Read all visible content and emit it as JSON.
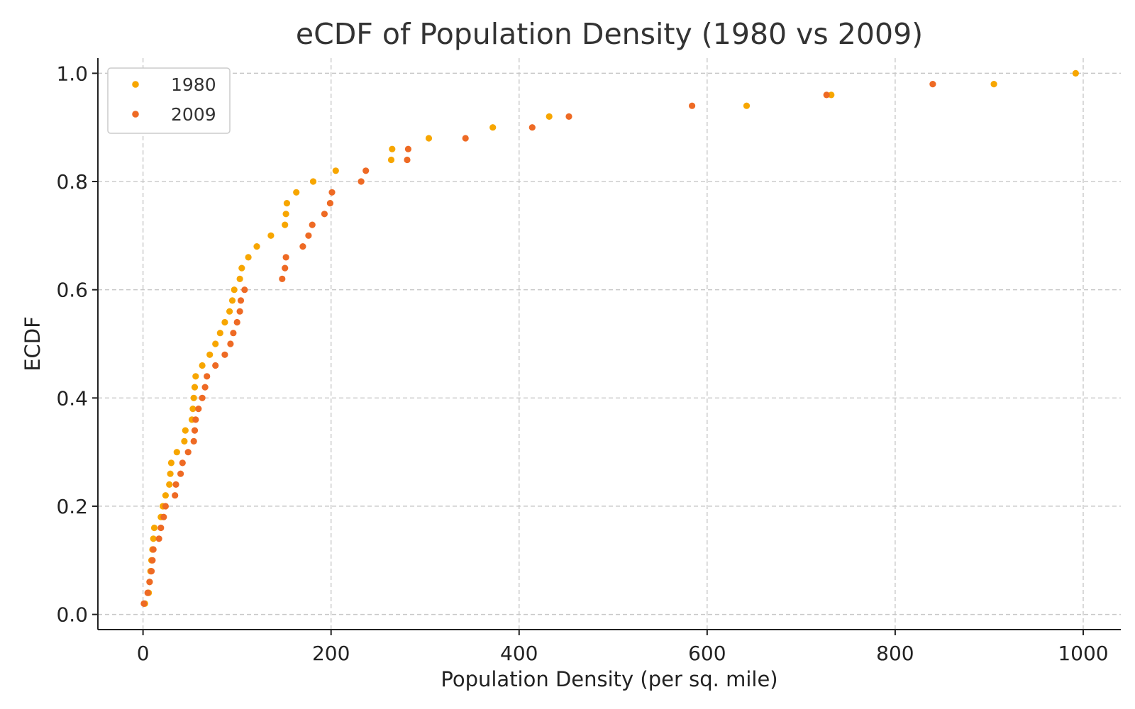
{
  "chart_data": {
    "type": "scatter",
    "title": "eCDF of Population Density (1980 vs 2009)",
    "xlabel": "Population Density (per sq. mile)",
    "ylabel": "ECDF",
    "xlim": [
      -48,
      1040
    ],
    "ylim": [
      -0.028,
      1.028
    ],
    "x_ticks": [
      0,
      200,
      400,
      600,
      800,
      1000
    ],
    "x_tick_labels": [
      "0",
      "200",
      "400",
      "600",
      "800",
      "1000"
    ],
    "y_ticks": [
      0.0,
      0.2,
      0.4,
      0.6,
      0.8,
      1.0
    ],
    "y_tick_labels": [
      "0.0",
      "0.2",
      "0.4",
      "0.6",
      "0.8",
      "1.0"
    ],
    "grid": true,
    "legend_position": "top-left",
    "series": [
      {
        "name": "1980",
        "color": "#f7a600",
        "points": [
          [
            2,
            0.02
          ],
          [
            6,
            0.04
          ],
          [
            7,
            0.06
          ],
          [
            8,
            0.08
          ],
          [
            9,
            0.1
          ],
          [
            10,
            0.12
          ],
          [
            11,
            0.14
          ],
          [
            12,
            0.16
          ],
          [
            19,
            0.18
          ],
          [
            21,
            0.2
          ],
          [
            24,
            0.22
          ],
          [
            28,
            0.24
          ],
          [
            29,
            0.26
          ],
          [
            30,
            0.28
          ],
          [
            36,
            0.3
          ],
          [
            44,
            0.32
          ],
          [
            45,
            0.34
          ],
          [
            52,
            0.36
          ],
          [
            53,
            0.38
          ],
          [
            54,
            0.4
          ],
          [
            55,
            0.42
          ],
          [
            56,
            0.44
          ],
          [
            63,
            0.46
          ],
          [
            71,
            0.48
          ],
          [
            77,
            0.5
          ],
          [
            82,
            0.52
          ],
          [
            87,
            0.54
          ],
          [
            92,
            0.56
          ],
          [
            95,
            0.58
          ],
          [
            97,
            0.6
          ],
          [
            103,
            0.62
          ],
          [
            105,
            0.64
          ],
          [
            112,
            0.66
          ],
          [
            121,
            0.68
          ],
          [
            136,
            0.7
          ],
          [
            151,
            0.72
          ],
          [
            152,
            0.74
          ],
          [
            153,
            0.76
          ],
          [
            163,
            0.78
          ],
          [
            181,
            0.8
          ],
          [
            205,
            0.82
          ],
          [
            264,
            0.84
          ],
          [
            265,
            0.86
          ],
          [
            304,
            0.88
          ],
          [
            372,
            0.9
          ],
          [
            432,
            0.92
          ],
          [
            642,
            0.94
          ],
          [
            732,
            0.96
          ],
          [
            905,
            0.98
          ],
          [
            992,
            1.0
          ]
        ]
      },
      {
        "name": "2009",
        "color": "#ee6a24",
        "points": [
          [
            1,
            0.02
          ],
          [
            5,
            0.04
          ],
          [
            7,
            0.06
          ],
          [
            9,
            0.08
          ],
          [
            10,
            0.1
          ],
          [
            11,
            0.12
          ],
          [
            17,
            0.14
          ],
          [
            19,
            0.16
          ],
          [
            22,
            0.18
          ],
          [
            24,
            0.2
          ],
          [
            34,
            0.22
          ],
          [
            35,
            0.24
          ],
          [
            40,
            0.26
          ],
          [
            42,
            0.28
          ],
          [
            48,
            0.3
          ],
          [
            54,
            0.32
          ],
          [
            55,
            0.34
          ],
          [
            56,
            0.36
          ],
          [
            59,
            0.38
          ],
          [
            63,
            0.4
          ],
          [
            66,
            0.42
          ],
          [
            68,
            0.44
          ],
          [
            77,
            0.46
          ],
          [
            87,
            0.48
          ],
          [
            93,
            0.5
          ],
          [
            96,
            0.52
          ],
          [
            100,
            0.54
          ],
          [
            103,
            0.56
          ],
          [
            104,
            0.58
          ],
          [
            108,
            0.6
          ],
          [
            148,
            0.62
          ],
          [
            151,
            0.64
          ],
          [
            152,
            0.66
          ],
          [
            170,
            0.68
          ],
          [
            176,
            0.7
          ],
          [
            180,
            0.72
          ],
          [
            193,
            0.74
          ],
          [
            199,
            0.76
          ],
          [
            201,
            0.78
          ],
          [
            232,
            0.8
          ],
          [
            237,
            0.82
          ],
          [
            281,
            0.84
          ],
          [
            282,
            0.86
          ],
          [
            343,
            0.88
          ],
          [
            414,
            0.9
          ],
          [
            453,
            0.92
          ],
          [
            584,
            0.94
          ],
          [
            727,
            0.96
          ],
          [
            840,
            0.98
          ]
        ]
      }
    ]
  }
}
